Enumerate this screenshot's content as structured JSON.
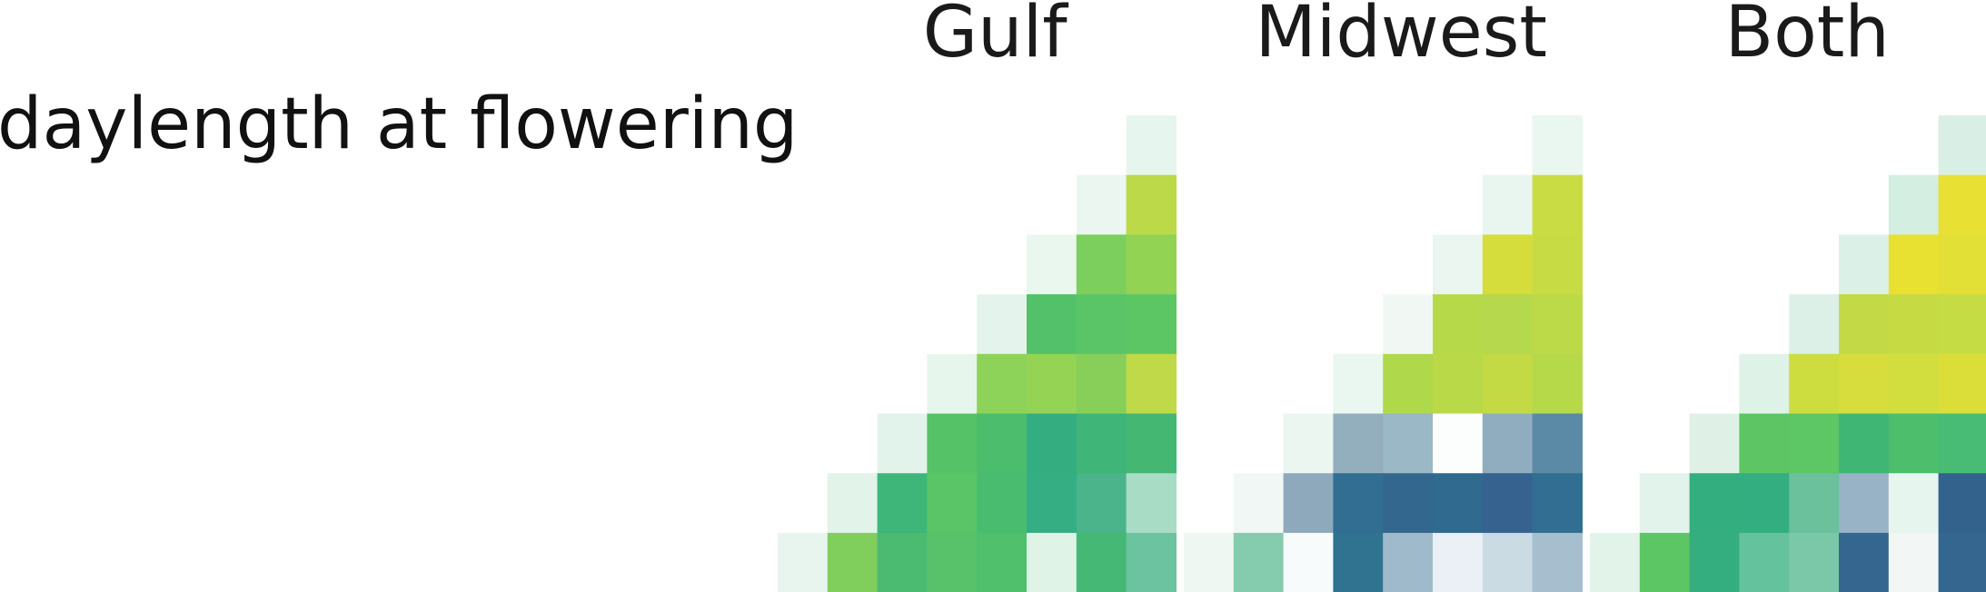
{
  "chart_data": {
    "type": "heatmap",
    "row_label": "daylength at flowering",
    "matrix_shape": "lower-triangular",
    "row_order": "top-to-bottom",
    "panels": [
      {
        "title": "Gulf",
        "colors": [
          [
            "#e6f6ee"
          ],
          [
            "#eaf6ef",
            "#bbd948"
          ],
          [
            "#eaf7ef",
            "#7ccf5c",
            "#92d354"
          ],
          [
            "#e4f4ec",
            "#52c16a",
            "#5ac566",
            "#5cc665"
          ],
          [
            "#e6f6ed",
            "#8ed359",
            "#95d354",
            "#88cf59",
            "#bfd948"
          ],
          [
            "#e2f3eb",
            "#55c268",
            "#4cbd6c",
            "#34ae80",
            "#3fb578",
            "#44b773"
          ],
          [
            "#e2f3ea",
            "#3eb67a",
            "#5ac566",
            "#49bc70",
            "#34ae82",
            "#4bb48a",
            "#a9dcc5"
          ],
          [
            "#e7f5ee",
            "#80ce5b",
            "#4cbb72",
            "#57c269",
            "#50c06c",
            "#e0f3e7",
            "#44b874",
            "#6cc3a0"
          ]
        ]
      },
      {
        "title": "Midwest",
        "colors": [
          [
            "#eaf6f0"
          ],
          [
            "#e8f6ef",
            "#c9dc44"
          ],
          [
            "#ecf6f0",
            "#d5dd3c",
            "#c7dc44"
          ],
          [
            "#f1f8f4",
            "#b6d94a",
            "#b5d84c",
            "#bcd948"
          ],
          [
            "#eaf7f0",
            "#b0d84b",
            "#bad948",
            "#c3da45",
            "#b6d94a"
          ],
          [
            "#ebf6f0",
            "#93afbe",
            "#9ab8c6",
            "#fcfdfd",
            "#8fadbf",
            "#5a8aa5"
          ],
          [
            "#f1f7f4",
            "#8ea9bc",
            "#316e91",
            "#34678e",
            "#306a8e",
            "#36628f",
            "#316e91"
          ],
          [
            "#eff7f3",
            "#85cbad",
            "#f8fbfc",
            "#307391",
            "#9fbbcb",
            "#eaf0f5",
            "#cbdbe4",
            "#a6becd"
          ]
        ]
      },
      {
        "title": "Both",
        "colors": [
          [
            "#d9efe6"
          ],
          [
            "#d4eee2",
            "#e8e032"
          ],
          [
            "#dbf1e7",
            "#e8e132",
            "#e2df36"
          ],
          [
            "#dcf0e7",
            "#c3da46",
            "#c6da44",
            "#c6dc44"
          ],
          [
            "#def2e8",
            "#cddd40",
            "#d6dd3c",
            "#d2dd3e",
            "#dbdd39"
          ],
          [
            "#dff1e7",
            "#5dc564",
            "#5dc665",
            "#40b675",
            "#4cbe6c",
            "#48bc74"
          ],
          [
            "#e2f3eb",
            "#33ae7f",
            "#33ae80",
            "#6ac19b",
            "#99b3c6",
            "#e7f5ef",
            "#33638c"
          ],
          [
            "#e2f4e9",
            "#5dc664",
            "#34ae7e",
            "#64c29c",
            "#7ac8a7",
            "#346690",
            "#f2f7f6",
            "#346690"
          ]
        ]
      }
    ]
  }
}
